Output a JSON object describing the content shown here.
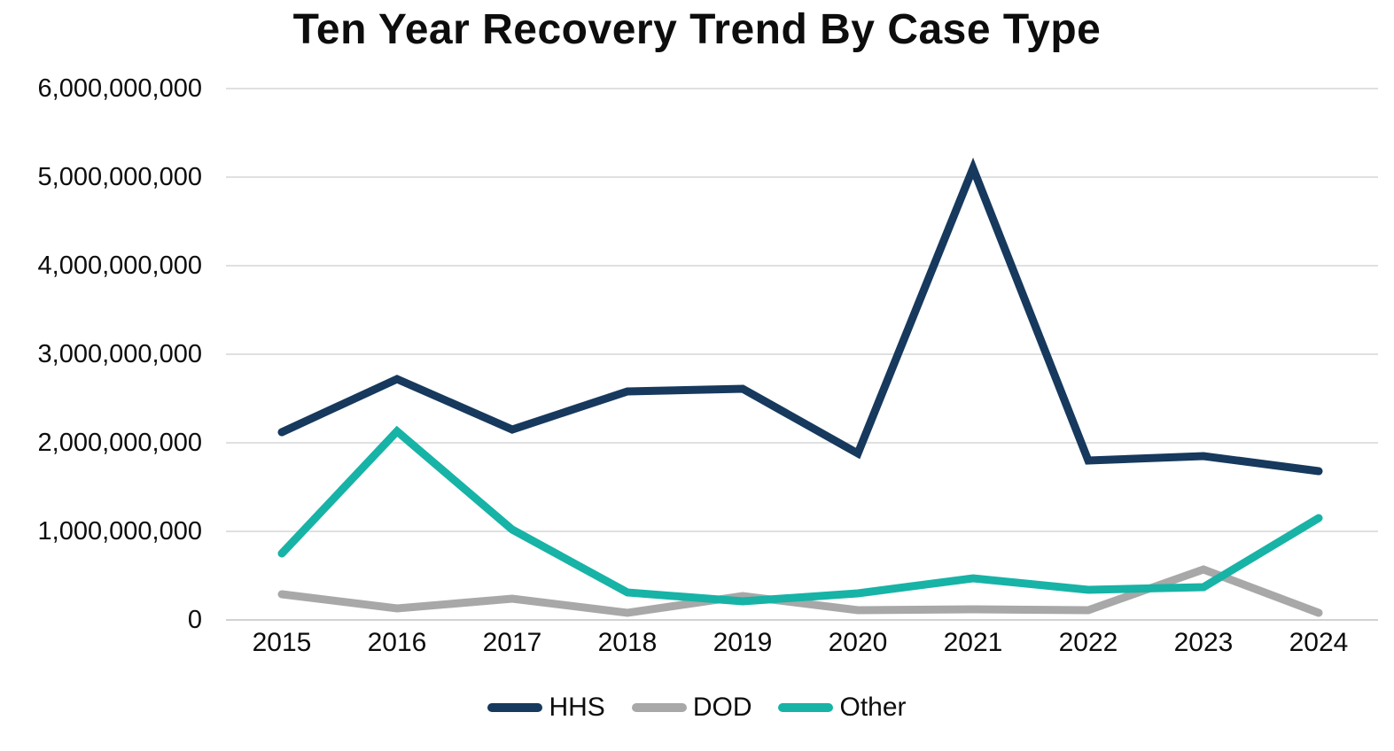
{
  "title": "Ten Year Recovery Trend By Case Type",
  "chart_data": {
    "type": "line",
    "title": "Ten Year Recovery Trend By Case Type",
    "xlabel": "",
    "ylabel": "",
    "grid": "horizontal",
    "legend_position": "bottom",
    "categories": [
      "2015",
      "2016",
      "2017",
      "2018",
      "2019",
      "2020",
      "2021",
      "2022",
      "2023",
      "2024"
    ],
    "series": [
      {
        "name": "HHS",
        "color": "#16395d",
        "values": [
          2120000000,
          2720000000,
          2150000000,
          2580000000,
          2610000000,
          1880000000,
          5100000000,
          1800000000,
          1850000000,
          1680000000
        ]
      },
      {
        "name": "DOD",
        "color": "#a8a8a8",
        "values": [
          290000000,
          130000000,
          240000000,
          80000000,
          270000000,
          110000000,
          120000000,
          110000000,
          570000000,
          80000000
        ]
      },
      {
        "name": "Other",
        "color": "#17b3a6",
        "values": [
          750000000,
          2130000000,
          1020000000,
          310000000,
          210000000,
          300000000,
          470000000,
          340000000,
          370000000,
          1150000000
        ]
      }
    ],
    "ylim": [
      0,
      6000000000
    ],
    "ytick_interval": 1000000000,
    "ytick_labels": [
      "0",
      "1,000,000,000",
      "2,000,000,000",
      "3,000,000,000",
      "4,000,000,000",
      "5,000,000,000",
      "6,000,000,000"
    ]
  },
  "colors": {
    "grid": "#e0e0e0",
    "baseline": "#d2d2d2",
    "text": "#0d0d0d"
  }
}
